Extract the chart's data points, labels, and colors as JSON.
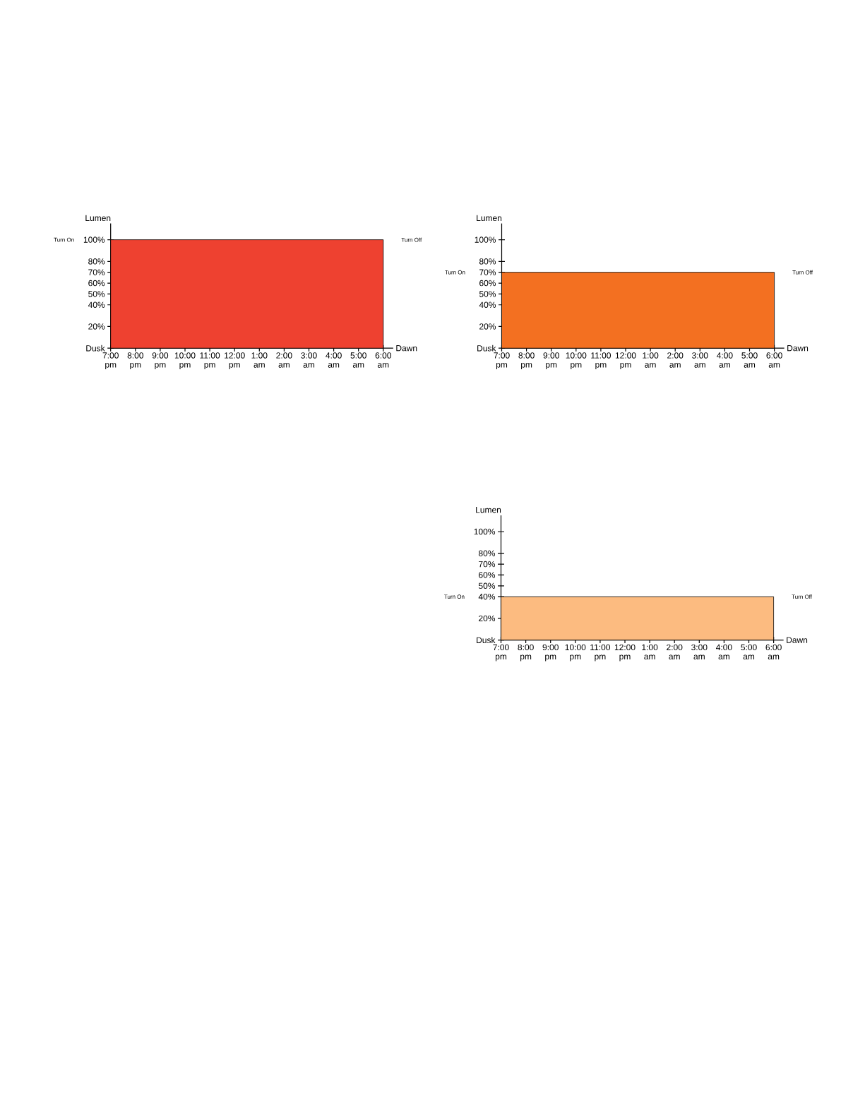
{
  "chart_data": [
    {
      "type": "area",
      "xlabel": "Dawn",
      "ylabel": "Lumen",
      "categories": [
        "7:00 pm",
        "8:00 pm",
        "9:00 pm",
        "10:00 pm",
        "11:00 pm",
        "12:00 pm",
        "1:00 am",
        "2:00 am",
        "3:00 am",
        "4:00 am",
        "5:00 am",
        "6:00 am"
      ],
      "values": [
        100,
        100,
        100,
        100,
        100,
        100,
        100,
        100,
        100,
        100,
        100,
        100
      ],
      "color": "#ee4130",
      "ylim": [
        0,
        115
      ],
      "yticks": [
        {
          "value": 0,
          "label": "Dusk"
        },
        {
          "value": 20,
          "label": "20%"
        },
        {
          "value": 40,
          "label": "40%"
        },
        {
          "value": 50,
          "label": "50%"
        },
        {
          "value": 60,
          "label": "60%"
        },
        {
          "value": 70,
          "label": "70%"
        },
        {
          "value": 80,
          "label": "80%"
        },
        {
          "value": 100,
          "label": "100%"
        }
      ],
      "annotations": [
        "Turn On",
        "Turn Off"
      ]
    },
    {
      "type": "area",
      "xlabel": "Dawn",
      "ylabel": "Lumen",
      "categories": [
        "7:00 pm",
        "8:00 pm",
        "9:00 pm",
        "10:00 pm",
        "11:00 pm",
        "12:00 pm",
        "1:00 am",
        "2:00 am",
        "3:00 am",
        "4:00 am",
        "5:00 am",
        "6:00 am"
      ],
      "values": [
        70,
        70,
        70,
        70,
        70,
        70,
        70,
        70,
        70,
        70,
        70,
        70
      ],
      "color": "#f37021",
      "ylim": [
        0,
        115
      ],
      "yticks": [
        {
          "value": 0,
          "label": "Dusk"
        },
        {
          "value": 20,
          "label": "20%"
        },
        {
          "value": 40,
          "label": "40%"
        },
        {
          "value": 50,
          "label": "50%"
        },
        {
          "value": 60,
          "label": "60%"
        },
        {
          "value": 70,
          "label": "70%"
        },
        {
          "value": 80,
          "label": "80%"
        },
        {
          "value": 100,
          "label": "100%"
        }
      ],
      "annotations": [
        "Turn On",
        "Turn Off"
      ]
    },
    {
      "type": "area",
      "xlabel": "Dawn",
      "ylabel": "Lumen",
      "categories": [
        "7:00 pm",
        "8:00 pm",
        "9:00 pm",
        "10:00 pm",
        "11:00 pm",
        "12:00 pm",
        "1:00 am",
        "2:00 am",
        "3:00 am",
        "4:00 am",
        "5:00 am",
        "6:00 am"
      ],
      "values": [
        40,
        40,
        40,
        40,
        40,
        40,
        40,
        40,
        40,
        40,
        40,
        40
      ],
      "color": "#fcbb80",
      "ylim": [
        0,
        115
      ],
      "yticks": [
        {
          "value": 0,
          "label": "Dusk"
        },
        {
          "value": 20,
          "label": "20%"
        },
        {
          "value": 40,
          "label": "40%"
        },
        {
          "value": 50,
          "label": "50%"
        },
        {
          "value": 60,
          "label": "60%"
        },
        {
          "value": 70,
          "label": "70%"
        },
        {
          "value": 80,
          "label": "80%"
        },
        {
          "value": 100,
          "label": "100%"
        }
      ],
      "annotations": [
        "Turn On",
        "Turn Off"
      ]
    }
  ]
}
